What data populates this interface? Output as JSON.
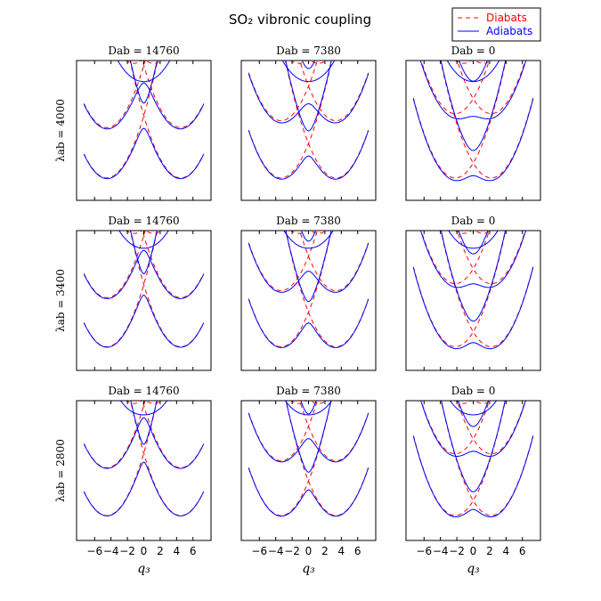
{
  "chart_data": {
    "type": "line",
    "title": "SO₂ vibronic coupling",
    "xlabel": "q₃",
    "x_ticks": [
      -6,
      -4,
      -2,
      0,
      2,
      4,
      6
    ],
    "xlim": [
      -8.2,
      8.2
    ],
    "legend": {
      "position": "top-right",
      "entries": [
        {
          "name": "Diabats",
          "color": "#ff0000",
          "style": "dashed"
        },
        {
          "name": "Adiabats",
          "color": "#0000ff",
          "style": "solid"
        }
      ]
    },
    "rows": [
      {
        "ylabel": "λab = 4000",
        "panels": [
          {
            "title": "Dab = 14760",
            "D_ab": 14760,
            "lambda_ab": 4000
          },
          {
            "title": "Dab = 7380",
            "D_ab": 7380,
            "lambda_ab": 4000
          },
          {
            "title": "Dab = 0",
            "D_ab": 0,
            "lambda_ab": 4000
          }
        ]
      },
      {
        "ylabel": "λab = 3400",
        "panels": [
          {
            "title": "Dab = 14760",
            "D_ab": 14760,
            "lambda_ab": 3400
          },
          {
            "title": "Dab = 7380",
            "D_ab": 7380,
            "lambda_ab": 3400
          },
          {
            "title": "Dab = 0",
            "D_ab": 0,
            "lambda_ab": 3400
          }
        ]
      },
      {
        "ylabel": "λab = 2800",
        "panels": [
          {
            "title": "Dab = 14760",
            "D_ab": 14760,
            "lambda_ab": 2800
          },
          {
            "title": "Dab = 7380",
            "D_ab": 7380,
            "lambda_ab": 2800
          },
          {
            "title": "Dab = 0",
            "D_ab": 0,
            "lambda_ab": 2800
          }
        ]
      }
    ],
    "colors": {
      "diabat": "#ff0000",
      "adiabat": "#0000ff"
    }
  }
}
